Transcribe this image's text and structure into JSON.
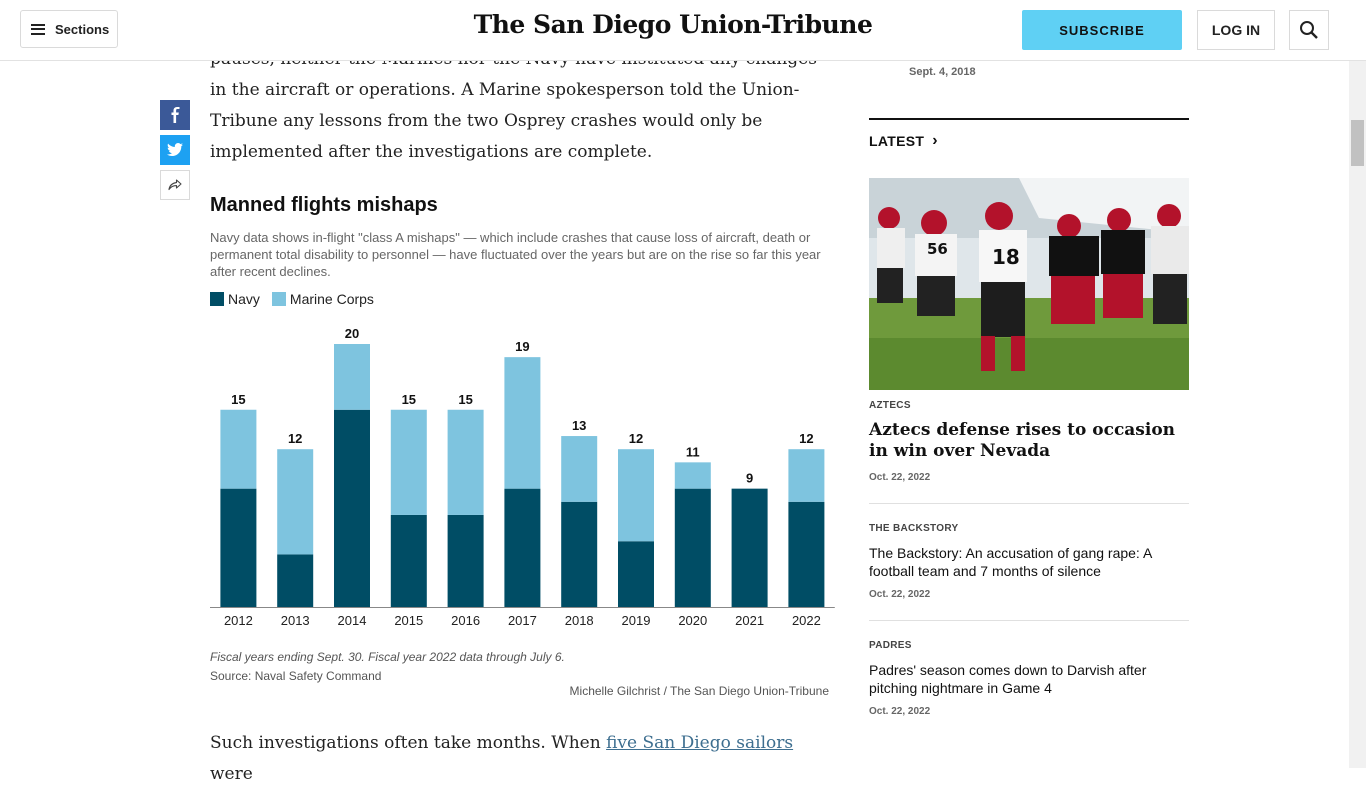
{
  "header": {
    "sections_label": "Sections",
    "masthead": "The San Diego Union-Tribune",
    "subscribe_label": "SUBSCRIBE",
    "login_label": "LOG IN"
  },
  "share": {
    "icons": [
      "facebook-icon",
      "twitter-icon",
      "share-icon"
    ]
  },
  "article": {
    "paragraph_top": "pauses, neither the Marines nor the Navy have instituted any changes in the aircraft or operations. A Marine spokesperson told the Union-Tribune any lessons from the two Osprey crashes would only be implemented after the investigations are complete.",
    "paragraph_bottom_before": "Such investigations often take months. When ",
    "paragraph_bottom_link": "five San Diego sailors",
    "paragraph_bottom_after": " were"
  },
  "chart_block": {
    "title": "Manned flights mishaps",
    "subtitle": "Navy data shows in-flight \"class A mishaps\" — which include crashes that cause loss of aircraft, death or permanent total disability to personnel — have fluctuated over the years but are on the rise so far this year after recent declines.",
    "note": "Fiscal years ending Sept. 30. Fiscal year 2022 data through July 6.",
    "source": "Source: Naval Safety Command",
    "credit": "Michelle Gilchrist / The San Diego Union-Tribune"
  },
  "chart_data": {
    "type": "bar",
    "stacked": true,
    "title": "Manned flights mishaps",
    "categories": [
      "2012",
      "2013",
      "2014",
      "2015",
      "2016",
      "2017",
      "2018",
      "2019",
      "2020",
      "2021",
      "2022"
    ],
    "series": [
      {
        "name": "Navy",
        "color": "#004d65",
        "values": [
          9,
          4,
          15,
          7,
          7,
          9,
          8,
          5,
          9,
          9,
          8
        ]
      },
      {
        "name": "Marine Corps",
        "color": "#7ec4df",
        "values": [
          6,
          8,
          5,
          8,
          8,
          10,
          5,
          7,
          2,
          0,
          4
        ]
      }
    ],
    "totals": [
      15,
      12,
      20,
      15,
      15,
      19,
      13,
      12,
      11,
      9,
      12
    ],
    "ylim": [
      0,
      20
    ],
    "grid": false,
    "legend": "top-left"
  },
  "rail": {
    "top_date": "Sept. 4, 2018",
    "latest_label": "LATEST",
    "stories": [
      {
        "kicker": "AZTECS",
        "headline": "Aztecs defense rises to occasion in win over Nevada",
        "date": "Oct. 22, 2022"
      },
      {
        "kicker": "THE BACKSTORY",
        "headline": "The Backstory: An accusation of gang rape: A football team and 7 months of silence",
        "date": "Oct. 22, 2022"
      },
      {
        "kicker": "PADRES",
        "headline": "Padres' season comes down to Darvish after pitching nightmare in Game 4",
        "date": "Oct. 22, 2022"
      }
    ],
    "photo_jersey_numbers": [
      "56",
      "18"
    ]
  }
}
